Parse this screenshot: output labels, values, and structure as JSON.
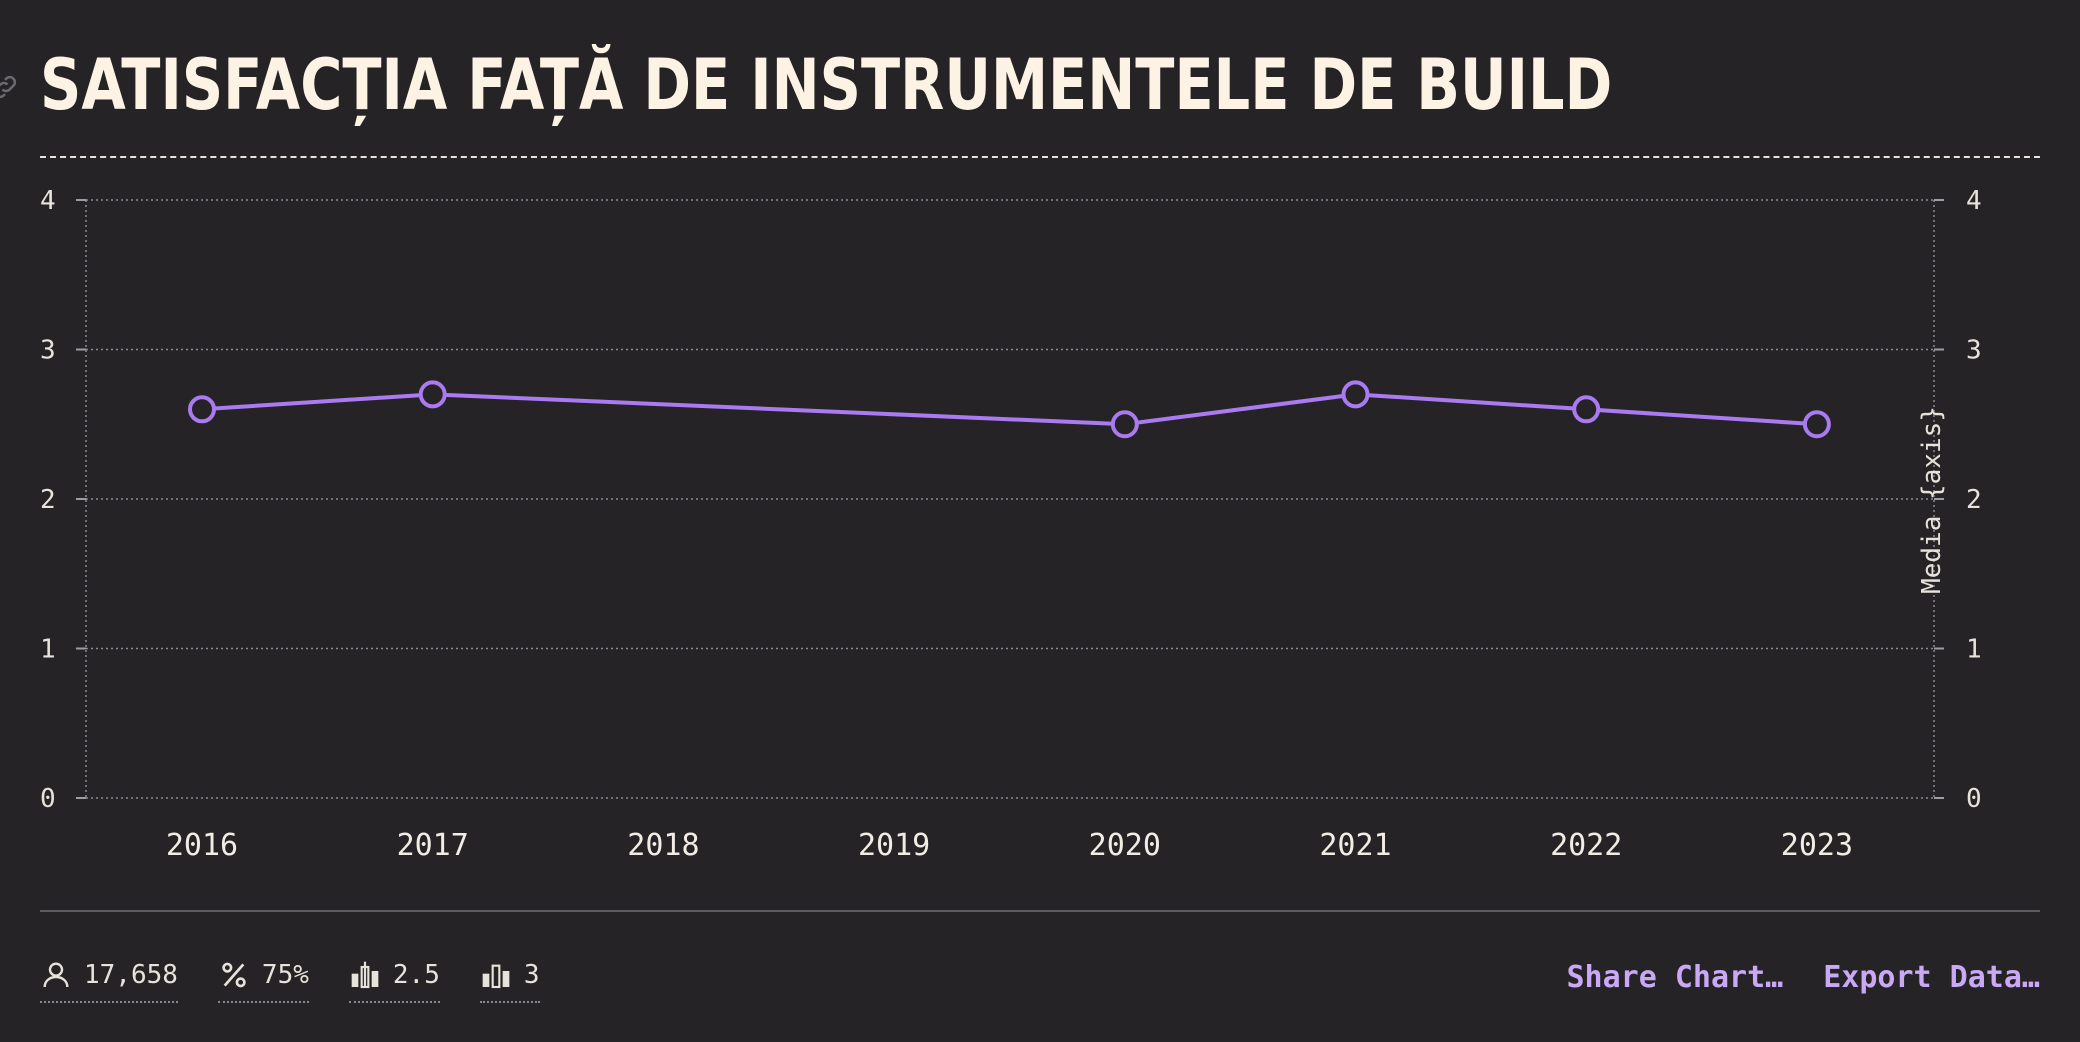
{
  "title": "Satisfacția față de instrumentele de build",
  "chart_data": {
    "type": "line",
    "x": [
      "2016",
      "2017",
      "2018",
      "2019",
      "2020",
      "2021",
      "2022",
      "2023"
    ],
    "series": [
      {
        "values": [
          2.6,
          2.7,
          null,
          null,
          2.5,
          2.7,
          2.6,
          2.5
        ]
      }
    ],
    "ylim": [
      0,
      4
    ],
    "yticks": [
      "0",
      "1",
      "2",
      "3",
      "4"
    ],
    "ylabel_right": "Media {axis}",
    "grid": true,
    "line_color": "#a97af0"
  },
  "stats": [
    {
      "icon": "user-icon",
      "value": "17,658"
    },
    {
      "icon": "percent-icon",
      "value": "75%"
    },
    {
      "icon": "candlestick-icon",
      "value": "2.5"
    },
    {
      "icon": "bar-chart-icon",
      "value": "3"
    }
  ],
  "actions": {
    "share": "Share Chart…",
    "export": "Export Data…"
  }
}
